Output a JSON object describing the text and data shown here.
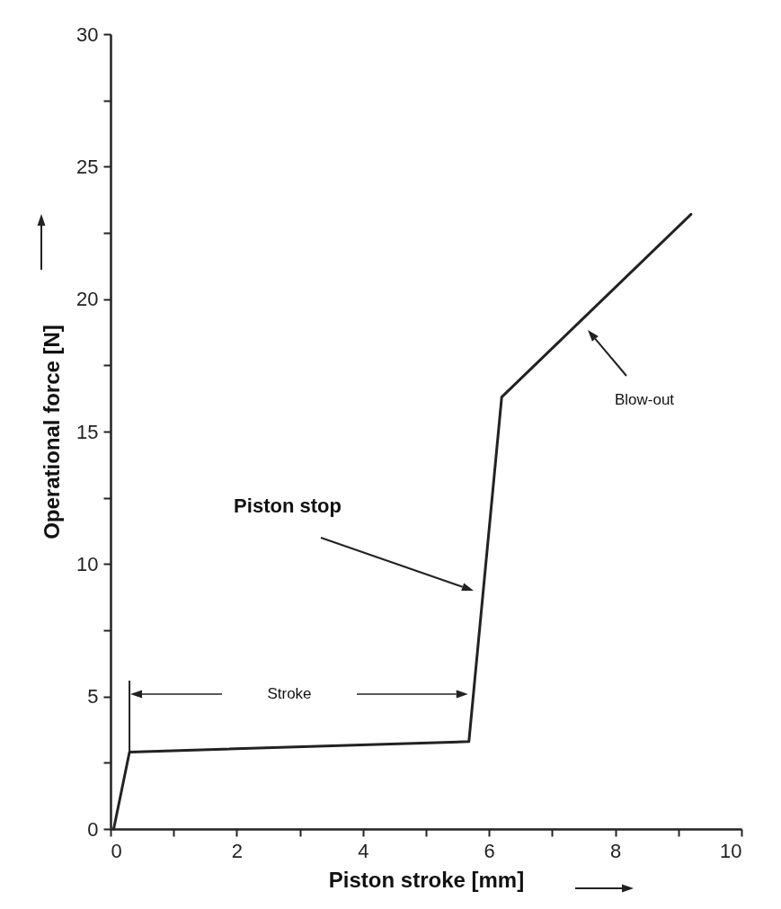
{
  "chart_data": {
    "type": "line",
    "xlabel": "Piston stroke [mm]",
    "ylabel": "Operational force [N]",
    "x": [
      0.05,
      0.3,
      5.68,
      6.2,
      9.2
    ],
    "series": [
      {
        "color": "#222222",
        "values": [
          0,
          2.9,
          3.3,
          16.3,
          23.2
        ]
      }
    ],
    "xlim": [
      0,
      10
    ],
    "ylim": [
      0,
      30
    ],
    "xticks": [
      0,
      {
        "value": 1,
        "label": null
      },
      2,
      {
        "value": 3,
        "label": null
      },
      4,
      {
        "value": 5,
        "label": null
      },
      6,
      {
        "value": 7,
        "label": null
      },
      8,
      {
        "value": 9,
        "label": null
      },
      10
    ],
    "yticks": [
      0,
      {
        "value": 2.5,
        "label": null
      },
      5,
      {
        "value": 7.5,
        "label": null
      },
      10,
      {
        "value": 12.5,
        "label": null
      },
      15,
      {
        "value": 17.5,
        "label": null
      },
      20,
      {
        "value": 22.5,
        "label": null
      },
      25,
      {
        "value": 27.5,
        "label": null
      },
      30
    ],
    "grid": false,
    "marker": "none",
    "line_style": "solid",
    "annotations": [
      "Piston stop",
      "Blow-out",
      "Stroke"
    ]
  }
}
